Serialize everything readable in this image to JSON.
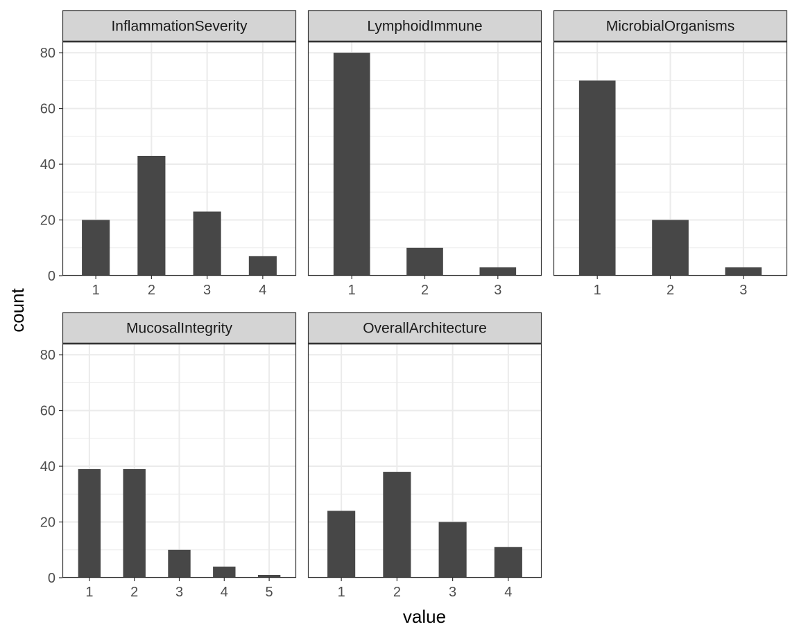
{
  "chart_data": {
    "type": "bar",
    "xlabel": "value",
    "ylabel": "count",
    "ylim": [
      0,
      84
    ],
    "y_ticks": [
      "0",
      "20",
      "40",
      "60",
      "80"
    ],
    "grid": true,
    "theme_colors": {
      "bar": "#474747",
      "strip": "#d4d4d4",
      "grid": "#ebebeb",
      "border": "#333333"
    },
    "panels": [
      {
        "name": "InflammationSeverity",
        "categories": [
          "1",
          "2",
          "3",
          "4"
        ],
        "values": [
          20,
          43,
          23,
          7
        ]
      },
      {
        "name": "LymphoidImmune",
        "categories": [
          "1",
          "2",
          "3"
        ],
        "values": [
          80,
          10,
          3
        ]
      },
      {
        "name": "MicrobialOrganisms",
        "categories": [
          "1",
          "2",
          "3"
        ],
        "values": [
          70,
          20,
          3
        ]
      },
      {
        "name": "MucosalIntegrity",
        "categories": [
          "1",
          "2",
          "3",
          "4",
          "5"
        ],
        "values": [
          39,
          39,
          10,
          4,
          1
        ]
      },
      {
        "name": "OverallArchitecture",
        "categories": [
          "1",
          "2",
          "3",
          "4"
        ],
        "values": [
          24,
          38,
          20,
          11
        ]
      }
    ]
  }
}
